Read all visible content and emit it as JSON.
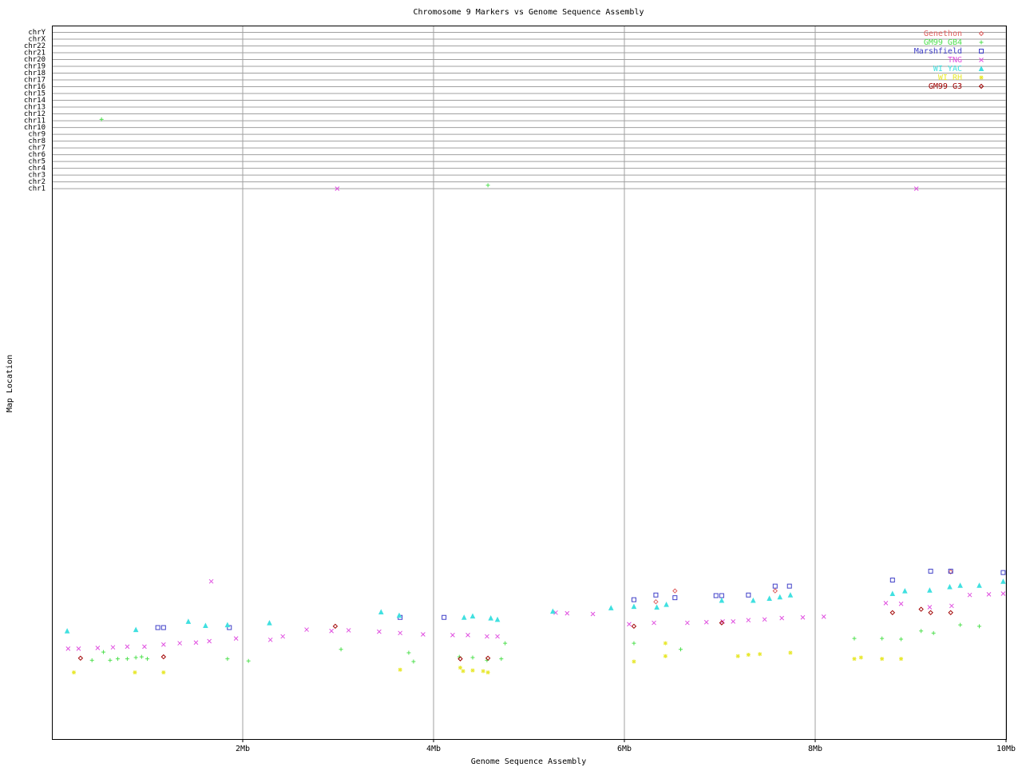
{
  "chart_data": {
    "type": "scatter",
    "title": "Chromosome 9 Markers vs Genome Sequence Assembly",
    "x_label": "Genome Sequence Assembly",
    "y_label": "Map Location",
    "xlim": [
      0,
      10
    ],
    "xticks": [
      {
        "value": 2,
        "label": "2Mb"
      },
      {
        "value": 4,
        "label": "4Mb"
      },
      {
        "value": 6,
        "label": "6Mb"
      },
      {
        "value": 8,
        "label": "8Mb"
      },
      {
        "value": 10,
        "label": "10Mb"
      }
    ],
    "ylim": [
      -80,
      25
    ],
    "yticks": [
      {
        "value": 1,
        "label": "chr1"
      },
      {
        "value": 2,
        "label": "chr2"
      },
      {
        "value": 3,
        "label": "chr3"
      },
      {
        "value": 4,
        "label": "chr4"
      },
      {
        "value": 5,
        "label": "chr5"
      },
      {
        "value": 6,
        "label": "chr6"
      },
      {
        "value": 7,
        "label": "chr7"
      },
      {
        "value": 8,
        "label": "chr8"
      },
      {
        "value": 9,
        "label": "chr9"
      },
      {
        "value": 10,
        "label": "chr10"
      },
      {
        "value": 11,
        "label": "chr11"
      },
      {
        "value": 12,
        "label": "chr12"
      },
      {
        "value": 13,
        "label": "chr13"
      },
      {
        "value": 14,
        "label": "chr14"
      },
      {
        "value": 15,
        "label": "chr15"
      },
      {
        "value": 16,
        "label": "chr16"
      },
      {
        "value": 17,
        "label": "chr17"
      },
      {
        "value": 18,
        "label": "chr18"
      },
      {
        "value": 19,
        "label": "chr19"
      },
      {
        "value": 20,
        "label": "chr20"
      },
      {
        "value": 21,
        "label": "chr21"
      },
      {
        "value": 22,
        "label": "chr22"
      },
      {
        "value": 23,
        "label": "chrX"
      },
      {
        "value": 24,
        "label": "chrY"
      }
    ],
    "grid": true,
    "legend": "top-right",
    "series": [
      {
        "name": "Genethon",
        "color": "#e06060",
        "marker": "diamond",
        "x": [
          6.33,
          6.53,
          7.58,
          9.42
        ],
        "y": [
          -59.8,
          -58.2,
          -58.2,
          -55.4
        ]
      },
      {
        "name": "GM99 GB4",
        "color": "#50e050",
        "marker": "plus",
        "x": [
          0.52,
          4.57,
          0.42,
          0.54,
          0.61,
          0.69,
          0.79,
          0.88,
          0.94,
          1.0,
          1.84,
          2.06,
          3.03,
          3.74,
          3.79,
          4.27,
          4.41,
          4.56,
          4.71,
          4.75,
          6.1,
          6.59,
          8.41,
          8.7,
          8.9,
          9.11,
          9.24,
          9.52,
          9.72
        ],
        "y": [
          11.2,
          1.5,
          -68.4,
          -67.2,
          -68.4,
          -68.2,
          -68.2,
          -68.0,
          -67.9,
          -68.2,
          -68.2,
          -68.5,
          -66.8,
          -67.3,
          -68.6,
          -67.9,
          -68.0,
          -68.4,
          -68.2,
          -65.9,
          -65.9,
          -66.8,
          -65.2,
          -65.2,
          -65.3,
          -64.1,
          -64.4,
          -63.2,
          -63.4
        ]
      },
      {
        "name": "Marshfield",
        "color": "#4040c8",
        "marker": "square",
        "x": [
          1.11,
          1.17,
          1.86,
          3.65,
          4.11,
          6.1,
          6.33,
          6.53,
          6.96,
          7.02,
          7.3,
          7.58,
          7.73,
          8.81,
          9.21,
          9.42,
          9.97
        ],
        "y": [
          -63.6,
          -63.6,
          -63.6,
          -62.1,
          -62.1,
          -59.5,
          -58.8,
          -59.2,
          -58.9,
          -58.9,
          -58.8,
          -57.5,
          -57.5,
          -56.6,
          -55.3,
          -55.3,
          -55.5
        ]
      },
      {
        "name": "TNG",
        "color": "#e050e0",
        "marker": "cross",
        "x": [
          2.99,
          9.06,
          0.17,
          0.28,
          0.48,
          0.64,
          0.79,
          0.97,
          1.17,
          1.34,
          1.51,
          1.65,
          1.67,
          1.93,
          2.29,
          2.42,
          2.67,
          2.93,
          3.11,
          3.43,
          3.65,
          3.89,
          4.2,
          4.36,
          4.56,
          4.67,
          5.28,
          5.4,
          5.67,
          6.05,
          6.31,
          6.66,
          6.86,
          7.03,
          7.14,
          7.3,
          7.47,
          7.65,
          7.87,
          8.09,
          8.74,
          8.9,
          9.2,
          9.43,
          9.62,
          9.82,
          9.97
        ],
        "y": [
          1.0,
          1.0,
          -66.7,
          -66.7,
          -66.6,
          -66.5,
          -66.4,
          -66.4,
          -66.1,
          -65.9,
          -65.8,
          -65.6,
          -56.8,
          -65.2,
          -65.4,
          -64.9,
          -63.9,
          -64.1,
          -64.0,
          -64.2,
          -64.4,
          -64.6,
          -64.7,
          -64.7,
          -64.9,
          -64.9,
          -61.4,
          -61.5,
          -61.6,
          -63.1,
          -62.9,
          -62.9,
          -62.8,
          -62.7,
          -62.7,
          -62.5,
          -62.4,
          -62.2,
          -62.1,
          -62.0,
          -60.0,
          -60.1,
          -60.6,
          -60.4,
          -58.8,
          -58.7,
          -58.6
        ]
      },
      {
        "name": "WI YAC",
        "color": "#40e0e0",
        "marker": "triangle",
        "x": [
          0.16,
          0.88,
          1.43,
          1.61,
          1.84,
          2.28,
          3.45,
          3.64,
          4.32,
          4.41,
          4.6,
          4.67,
          5.25,
          5.86,
          6.1,
          6.34,
          6.44,
          7.02,
          7.35,
          7.52,
          7.63,
          7.74,
          8.81,
          8.94,
          9.2,
          9.41,
          9.52,
          9.72,
          9.97
        ],
        "y": [
          -64.1,
          -63.9,
          -62.7,
          -63.3,
          -63.2,
          -62.9,
          -61.3,
          -61.8,
          -62.1,
          -61.9,
          -62.2,
          -62.4,
          -61.2,
          -60.7,
          -60.5,
          -60.6,
          -60.2,
          -59.6,
          -59.6,
          -59.3,
          -59.1,
          -58.8,
          -58.6,
          -58.2,
          -58.1,
          -57.6,
          -57.4,
          -57.4,
          -56.8
        ]
      },
      {
        "name": "WI RH",
        "color": "#e8e830",
        "marker": "star",
        "x": [
          0.23,
          0.87,
          1.17,
          3.65,
          4.28,
          4.31,
          4.41,
          4.52,
          4.57,
          6.1,
          6.43,
          6.43,
          7.19,
          7.3,
          7.42,
          7.74,
          8.41,
          8.48,
          8.7,
          8.9
        ],
        "y": [
          -70.2,
          -70.2,
          -70.2,
          -69.8,
          -69.5,
          -70.0,
          -69.9,
          -70.0,
          -70.2,
          -68.6,
          -65.9,
          -67.8,
          -67.8,
          -67.6,
          -67.5,
          -67.3,
          -68.2,
          -68.0,
          -68.2,
          -68.2
        ]
      },
      {
        "name": "GM99 G3",
        "color": "#a00000",
        "marker": "diamond",
        "x": [
          0.3,
          1.17,
          2.97,
          4.28,
          4.57,
          6.1,
          7.02,
          8.81,
          9.11,
          9.21,
          9.42
        ],
        "y": [
          -68.1,
          -67.9,
          -63.4,
          -68.2,
          -68.1,
          -63.4,
          -62.9,
          -61.4,
          -60.9,
          -61.4,
          -61.4
        ]
      }
    ]
  }
}
